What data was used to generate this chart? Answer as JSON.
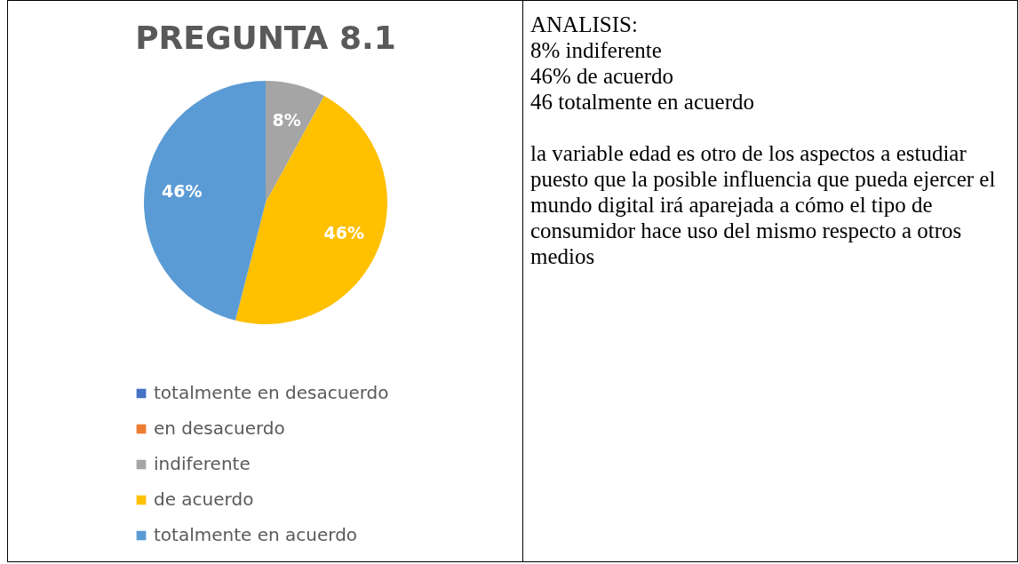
{
  "chart_data": {
    "type": "pie",
    "title": "PREGUNTA 8.1",
    "categories": [
      "totalmente en desacuerdo",
      "en desacuerdo",
      "indiferente",
      "de acuerdo",
      "totalmente en acuerdo"
    ],
    "values": [
      0,
      0,
      8,
      46,
      46
    ],
    "colors": [
      "#4472c4",
      "#ed7d31",
      "#a5a5a5",
      "#ffc000",
      "#5b9bd5"
    ],
    "value_labels": [
      null,
      null,
      "8%",
      "46%",
      "46%"
    ],
    "legend": "bottom",
    "annotations": [
      "ANALISIS:",
      "8% indiferente",
      "46% de acuerdo",
      "46 totalmente en acuerdo",
      "la variable edad es otro de los aspectos a estudiar puesto que la posible influencia que pueda ejercer el mundo digital irá aparejada a cómo el tipo de consumidor hace uso del mismo respecto a otros medios"
    ]
  }
}
